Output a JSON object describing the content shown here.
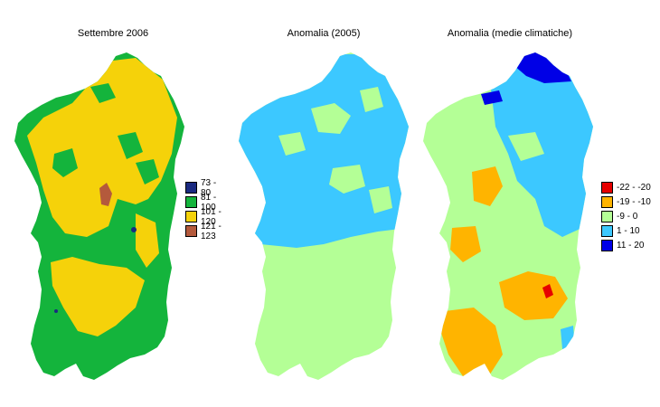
{
  "panels": [
    {
      "title": "Settembre 2006",
      "legend": [
        {
          "label": "73 - 80",
          "color": "#1a2a80"
        },
        {
          "label": "81 - 100",
          "color": "#14b43c"
        },
        {
          "label": "101 - 120",
          "color": "#f5d20a"
        },
        {
          "label": "121 - 123",
          "color": "#b45a3c"
        }
      ]
    },
    {
      "title": "Anomalia (2005)"
    },
    {
      "title": "Anomalia (medie climatiche)",
      "legend": [
        {
          "label": "-22 - -20",
          "color": "#e60000"
        },
        {
          "label": "-19 - -10",
          "color": "#ffb400"
        },
        {
          "label": "-9 - 0",
          "color": "#b4ff96"
        },
        {
          "label": "1 - 10",
          "color": "#3cc8ff"
        },
        {
          "label": "11 - 20",
          "color": "#0000e6"
        }
      ]
    }
  ]
}
